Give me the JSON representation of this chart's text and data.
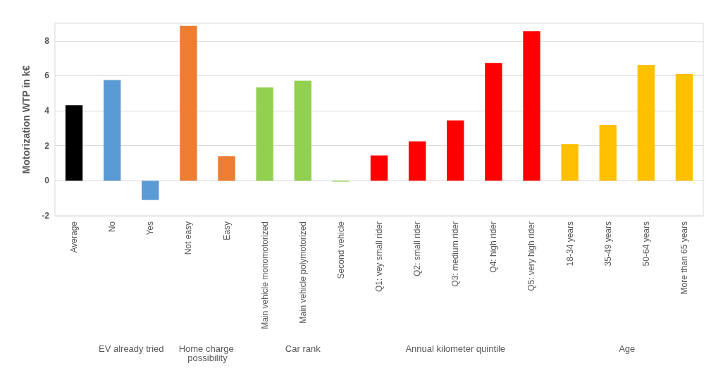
{
  "chart_data": {
    "type": "bar",
    "ylabel": "Motorization WTP in k€",
    "categories": [
      "Average",
      "No",
      "Yes",
      "Not easy",
      "Easy",
      "Main vehicle monomotorized",
      "Main vehicle polymotorized",
      "Second vehicle",
      "Q1: vey small rider",
      "Q2: small rider",
      "Q3: medium rider",
      "Q4: high rider",
      "Q5: very high rider",
      "18-34 years",
      "35-49 years",
      "50-64 years",
      "More than 65 years"
    ],
    "values": [
      4.32,
      5.76,
      -1.1,
      8.85,
      1.41,
      5.33,
      5.72,
      -0.05,
      1.45,
      2.25,
      3.45,
      6.73,
      8.55,
      2.1,
      3.2,
      6.62,
      6.1
    ],
    "colors": [
      "#000000",
      "#5b9bd5",
      "#5b9bd5",
      "#ed7d31",
      "#ed7d31",
      "#92d050",
      "#92d050",
      "#92d050",
      "#ff0000",
      "#ff0000",
      "#ff0000",
      "#ff0000",
      "#ff0000",
      "#ffc000",
      "#ffc000",
      "#ffc000",
      "#ffc000"
    ],
    "annotations": [
      "EV already tried",
      "Home charge possibility",
      "Car rank",
      "Annual kilometer quintile",
      "Age"
    ],
    "ylim": [
      -2,
      9
    ],
    "yticks": [
      -2,
      0,
      2,
      4,
      6,
      8
    ],
    "grid": "y"
  }
}
